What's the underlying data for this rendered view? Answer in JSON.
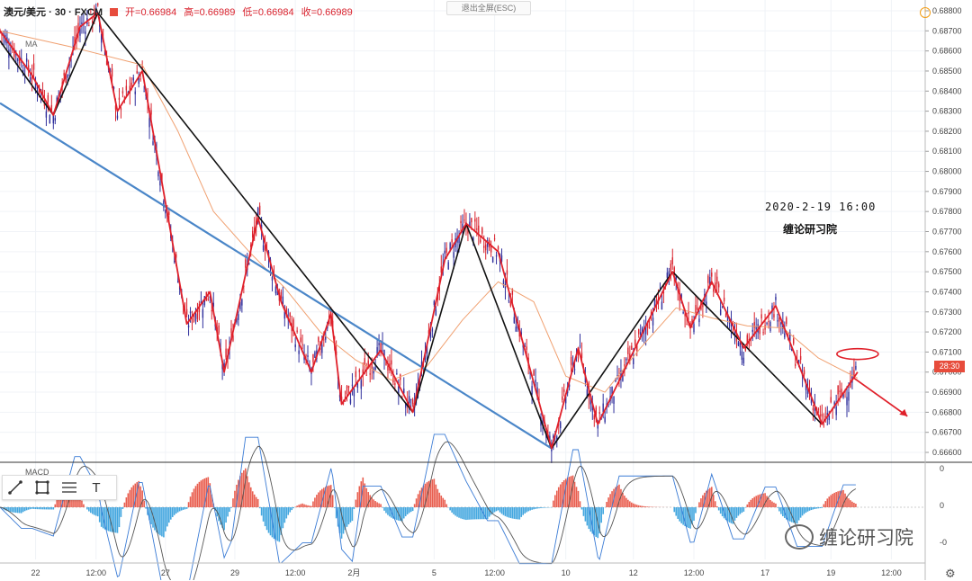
{
  "header": {
    "symbol": "澳元/美元 · 30 · FXCM",
    "open": "开=0.66984",
    "high": "高=0.66989",
    "low": "低=0.66984",
    "close": "收=0.66989"
  },
  "ma_label": "MA",
  "exit_fullscreen": "退出全屏(ESC)",
  "info_glyph": "!",
  "annotation": {
    "date": "2020-2-19 16:00",
    "brand": "缠论研习院"
  },
  "macd_label": "MACD",
  "toolbar": {
    "line_icon": "line-tool-icon",
    "rect_icon": "rectangle-tool-icon",
    "fib_icon": "fib-tool-icon",
    "text_icon": "T"
  },
  "time_badge": "28:30",
  "watermark": "缠论研习院",
  "settings_glyph": "⚙",
  "colors": {
    "up": "#2f2f9c",
    "down": "#d9232e",
    "bi": "#e0202a",
    "segment": "#111111",
    "trend": "#4a86c8",
    "ma": "#f0a070"
  },
  "chart_data": {
    "type": "line",
    "price_ticks": [
      "0.68800",
      "0.68700",
      "0.68600",
      "0.68500",
      "0.68400",
      "0.68300",
      "0.68200",
      "0.68100",
      "0.68000",
      "0.67900",
      "0.67800",
      "0.67700",
      "0.67600",
      "0.67500",
      "0.67400",
      "0.67300",
      "0.67200",
      "0.67100",
      "0.67000",
      "0.66900",
      "0.66800",
      "0.66700",
      "0.66600"
    ],
    "ylim": [
      0.6657,
      0.6882
    ],
    "macd_ticks": [
      "0",
      "0",
      "-0"
    ],
    "x_ticks": [
      "22",
      "12:00",
      "27",
      "29",
      "12:00",
      "2月",
      "5",
      "12:00",
      "10",
      "12",
      "12:00",
      "17",
      "19",
      "12:00"
    ],
    "x_tick_index": [
      20,
      54,
      93,
      132,
      166,
      199,
      244,
      278,
      318,
      356,
      390,
      430,
      467,
      501
    ],
    "xlim": [
      0,
      520
    ],
    "segment_line": [
      [
        0,
        0.6865
      ],
      [
        30,
        0.6828
      ],
      [
        55,
        0.6879
      ],
      [
        232,
        0.668
      ],
      [
        262,
        0.6774
      ],
      [
        310,
        0.6662
      ],
      [
        378,
        0.675
      ],
      [
        462,
        0.6674
      ]
    ],
    "bi_line": [
      [
        0,
        0.687
      ],
      [
        18,
        0.6848
      ],
      [
        30,
        0.6828
      ],
      [
        45,
        0.6872
      ],
      [
        55,
        0.6879
      ],
      [
        66,
        0.683
      ],
      [
        80,
        0.685
      ],
      [
        105,
        0.6724
      ],
      [
        118,
        0.674
      ],
      [
        126,
        0.67
      ],
      [
        145,
        0.6777
      ],
      [
        158,
        0.6735
      ],
      [
        175,
        0.67
      ],
      [
        186,
        0.6729
      ],
      [
        192,
        0.6684
      ],
      [
        214,
        0.6711
      ],
      [
        232,
        0.668
      ],
      [
        250,
        0.6756
      ],
      [
        262,
        0.6774
      ],
      [
        280,
        0.676
      ],
      [
        310,
        0.6662
      ],
      [
        325,
        0.6712
      ],
      [
        336,
        0.6674
      ],
      [
        378,
        0.675
      ],
      [
        388,
        0.6722
      ],
      [
        400,
        0.6745
      ],
      [
        418,
        0.6712
      ],
      [
        436,
        0.6733
      ],
      [
        462,
        0.6674
      ],
      [
        482,
        0.67
      ]
    ],
    "trend_line": [
      [
        0,
        0.6834
      ],
      [
        310,
        0.6662
      ]
    ],
    "ma_line": [
      [
        0,
        0.687
      ],
      [
        40,
        0.6862
      ],
      [
        80,
        0.6853
      ],
      [
        100,
        0.682
      ],
      [
        120,
        0.678
      ],
      [
        140,
        0.676
      ],
      [
        160,
        0.6742
      ],
      [
        180,
        0.672
      ],
      [
        200,
        0.6706
      ],
      [
        220,
        0.6696
      ],
      [
        240,
        0.6703
      ],
      [
        260,
        0.6726
      ],
      [
        280,
        0.6745
      ],
      [
        300,
        0.6735
      ],
      [
        318,
        0.6698
      ],
      [
        340,
        0.669
      ],
      [
        360,
        0.6712
      ],
      [
        380,
        0.6732
      ],
      [
        400,
        0.6727
      ],
      [
        420,
        0.6723
      ],
      [
        440,
        0.6722
      ],
      [
        460,
        0.6707
      ],
      [
        482,
        0.6697
      ]
    ],
    "projection": [
      [
        480,
        0.6697
      ],
      [
        510,
        0.6678
      ]
    ],
    "highlight_ellipse": [
      482,
      0.6709
    ]
  }
}
